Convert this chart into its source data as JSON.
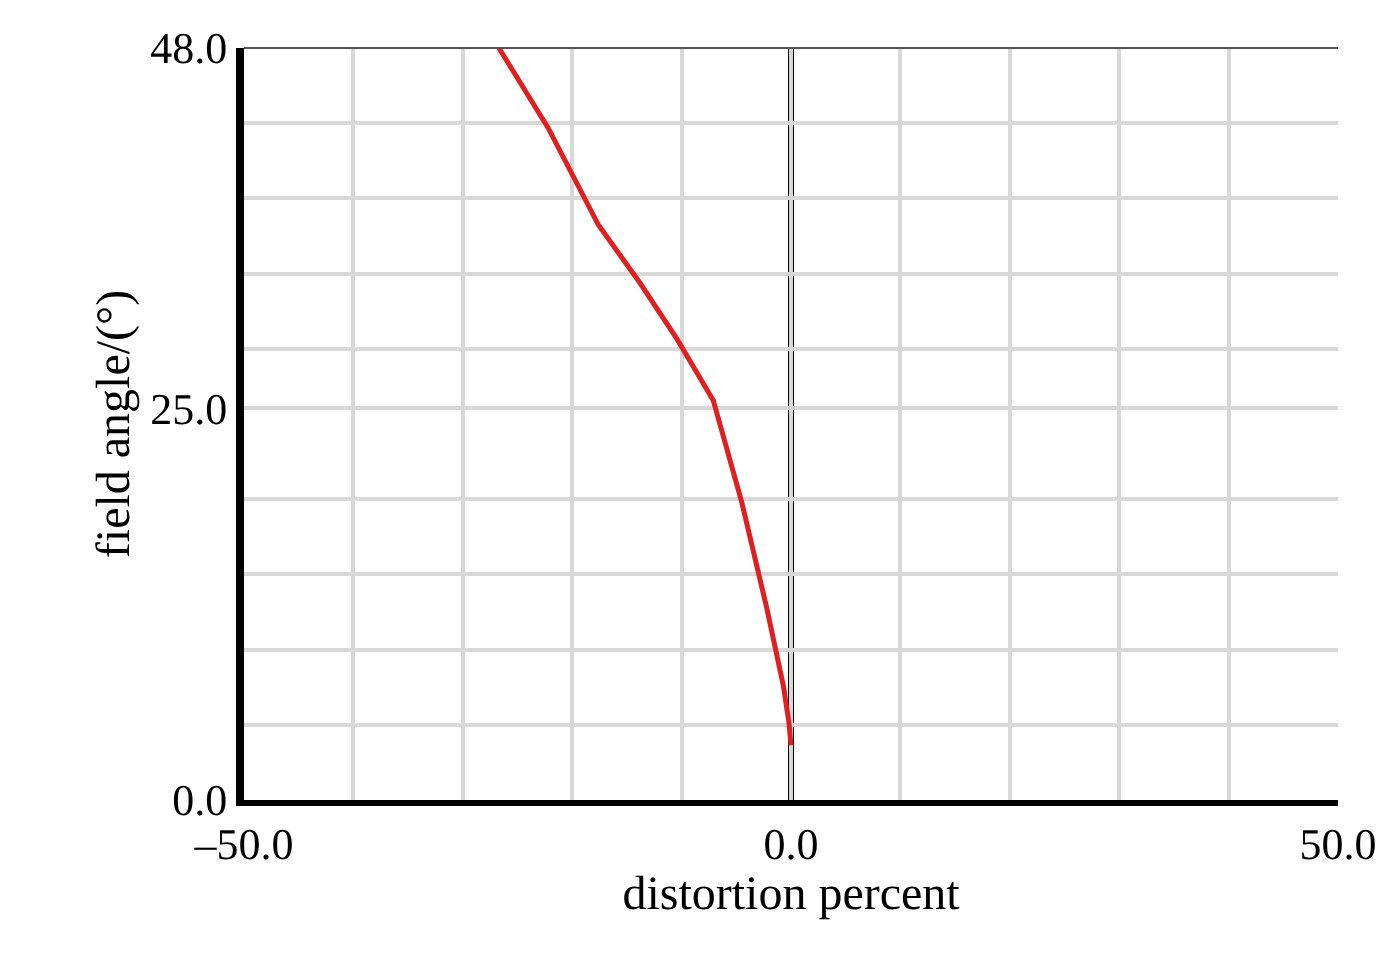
{
  "chart_data": {
    "type": "line",
    "xlabel": "distortion percent",
    "ylabel": "field angle/(°)",
    "x": [
      0,
      -0.2,
      -0.7,
      -2.2,
      -4.5,
      -7.1,
      -10.4,
      -13.8,
      -17.6,
      -22.2,
      -26.7
    ],
    "series": [
      {
        "color": "#e02020",
        "values": [
          3.5,
          5,
          7.3,
          12.2,
          19,
          25.5,
          29.4,
          33,
          36.7,
          42.9,
          48
        ]
      }
    ],
    "xlim": [
      -50,
      50
    ],
    "ylim": [
      0,
      48
    ],
    "xticks": [
      {
        "value": -50,
        "label": "–50.0"
      },
      {
        "value": -40,
        "label": null
      },
      {
        "value": -30,
        "label": null
      },
      {
        "value": -20,
        "label": null
      },
      {
        "value": -10,
        "label": null
      },
      {
        "value": 0,
        "label": "0.0"
      },
      {
        "value": 10,
        "label": null
      },
      {
        "value": 20,
        "label": null
      },
      {
        "value": 30,
        "label": null
      },
      {
        "value": 40,
        "label": null
      },
      {
        "value": 50,
        "label": "50.0"
      }
    ],
    "yticks": [
      {
        "value": 0,
        "label": "0.0"
      },
      {
        "value": 4.8,
        "label": null
      },
      {
        "value": 9.6,
        "label": null
      },
      {
        "value": 14.4,
        "label": null
      },
      {
        "value": 19.2,
        "label": null
      },
      {
        "value": 25,
        "label": "25.0"
      },
      {
        "value": 28.8,
        "label": null
      },
      {
        "value": 33.6,
        "label": null
      },
      {
        "value": 38.4,
        "label": null
      },
      {
        "value": 43.2,
        "label": null
      },
      {
        "value": 48,
        "label": "48.0"
      }
    ],
    "grid": true,
    "ref_lines": [
      {
        "axis": "x",
        "value": 0,
        "color": "#000000"
      }
    ]
  }
}
